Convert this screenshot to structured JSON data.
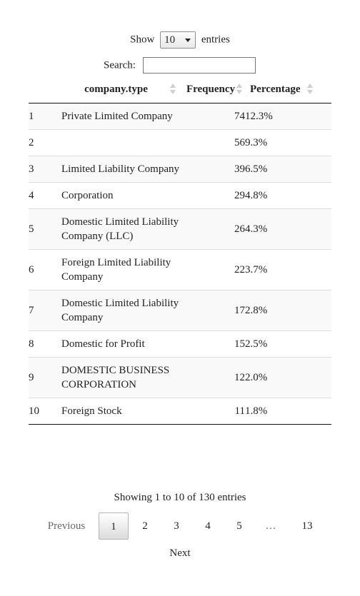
{
  "length_menu": {
    "prefix": "Show",
    "selected": "10",
    "suffix": "entries"
  },
  "search": {
    "label": "Search:",
    "value": ""
  },
  "table": {
    "columns": [
      "",
      "company.type",
      "Frequency",
      "Percentage"
    ],
    "rows": [
      {
        "index": "1",
        "type": "Private Limited Company",
        "frequency": "74",
        "percentage": "12.3%"
      },
      {
        "index": "2",
        "type": "",
        "frequency": "56",
        "percentage": "9.3%"
      },
      {
        "index": "3",
        "type": "Limited Liability Company",
        "frequency": "39",
        "percentage": "6.5%"
      },
      {
        "index": "4",
        "type": "Corporation",
        "frequency": "29",
        "percentage": "4.8%"
      },
      {
        "index": "5",
        "type": "Domestic Limited Liability Company (LLC)",
        "frequency": "26",
        "percentage": "4.3%"
      },
      {
        "index": "6",
        "type": "Foreign Limited Liability Company",
        "frequency": "22",
        "percentage": "3.7%"
      },
      {
        "index": "7",
        "type": "Domestic Limited Liability Company",
        "frequency": "17",
        "percentage": "2.8%"
      },
      {
        "index": "8",
        "type": "Domestic for Profit",
        "frequency": "15",
        "percentage": "2.5%"
      },
      {
        "index": "9",
        "type": "DOMESTIC BUSINESS CORPORATION",
        "frequency": "12",
        "percentage": "2.0%"
      },
      {
        "index": "10",
        "type": "Foreign Stock",
        "frequency": "11",
        "percentage": "1.8%"
      }
    ]
  },
  "info": "Showing 1 to 10 of 130 entries",
  "pagination": {
    "previous": "Previous",
    "pages": [
      "1",
      "2",
      "3",
      "4",
      "5",
      "…",
      "13"
    ],
    "current": "1",
    "next": "Next"
  }
}
